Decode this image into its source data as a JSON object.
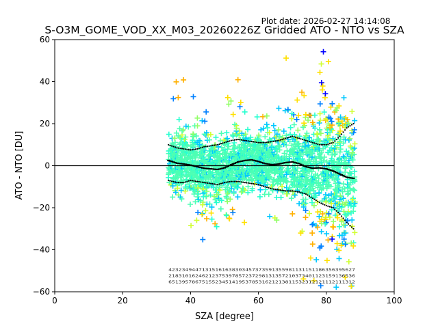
{
  "chart_data": {
    "type": "scatter",
    "title": "S-O3M_GOME_VOD_XX_M03_20260226Z Gridded ATO - NTO vs SZA",
    "plot_date": "Plot date: 2026-02-27 14:14:08",
    "xlabel": "SZA [degree]",
    "ylabel": "ATO - NTO [DU]",
    "xlim": [
      0,
      100
    ],
    "ylim": [
      -60,
      60
    ],
    "xticks": [
      0,
      20,
      40,
      60,
      80,
      100
    ],
    "xtick_labels": [
      "0",
      "20",
      "40",
      "60",
      "80",
      "100"
    ],
    "yticks": [
      -60,
      -40,
      -20,
      0,
      20,
      40,
      60
    ],
    "ytick_labels": [
      "−60",
      "−40",
      "−20",
      "0",
      "20",
      "40",
      "60"
    ],
    "zero_line": 0,
    "sza_range": [
      33.5,
      88.5
    ],
    "colors": {
      "dominant": "#4dffb4",
      "scale": [
        "#0000ff",
        "#0080ff",
        "#00c8ff",
        "#28ffd0",
        "#4dffb4",
        "#90ff66",
        "#d0ff30",
        "#ffe000",
        "#ffb000"
      ],
      "axes": "#000000"
    },
    "median": {
      "x": [
        33.5,
        36,
        38,
        40,
        42,
        44,
        46,
        48,
        50,
        52,
        54,
        56,
        58,
        60,
        62,
        64,
        66,
        68,
        70,
        72,
        74,
        76,
        78,
        80,
        82,
        84,
        86,
        88
      ],
      "y": [
        2.5,
        1.2,
        0.8,
        0.3,
        -0.5,
        -1.2,
        -1.5,
        -1.8,
        -1.0,
        0.5,
        1.8,
        2.5,
        2.8,
        2.0,
        1.0,
        0.5,
        0.8,
        1.5,
        1.8,
        1.0,
        -0.5,
        -1.2,
        -1.0,
        -1.5,
        -2.5,
        -4.0,
        -5.5,
        -6.0
      ]
    },
    "upper_band": {
      "x": [
        33.5,
        36,
        38,
        40,
        42,
        44,
        46,
        48,
        50,
        52,
        54,
        56,
        58,
        60,
        62,
        64,
        66,
        68,
        70,
        72,
        74,
        76,
        78,
        80,
        82,
        84,
        86,
        88
      ],
      "y": [
        10,
        8.5,
        8,
        7.5,
        8,
        9,
        9.5,
        10,
        11,
        12,
        12.5,
        12,
        11.5,
        11,
        11,
        11.5,
        12,
        13,
        14,
        13,
        12,
        11,
        10,
        10,
        11,
        14,
        18,
        20
      ]
    },
    "lower_band": {
      "x": [
        33.5,
        36,
        38,
        40,
        42,
        44,
        46,
        48,
        50,
        52,
        54,
        56,
        58,
        60,
        62,
        64,
        66,
        68,
        70,
        72,
        74,
        76,
        78,
        80,
        82,
        84,
        86,
        88
      ],
      "y": [
        -7,
        -8,
        -8,
        -7,
        -7.5,
        -8,
        -8.5,
        -9,
        -8,
        -7.5,
        -7.5,
        -8,
        -8.5,
        -9,
        -10,
        -11,
        -11.5,
        -12,
        -12,
        -12.5,
        -13.5,
        -15.5,
        -17.5,
        -19,
        -20,
        -23,
        -27,
        -30
      ]
    },
    "count_rows": [
      "42323494471315161638303457373591355981131151186356395627",
      "21831016246212375397857237298131357210373401123159136536",
      "65139578675155234514195378531621213811532312121112111312"
    ]
  }
}
